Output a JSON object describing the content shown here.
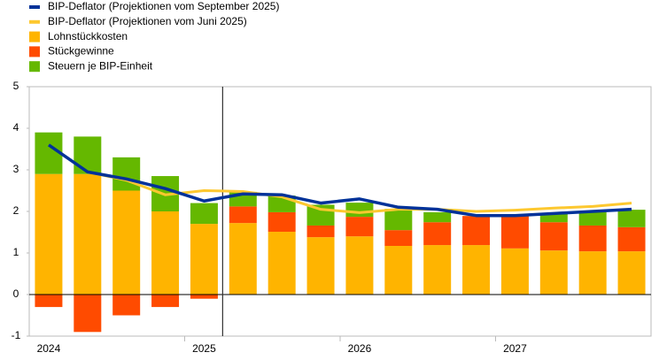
{
  "chart_data": {
    "type": "bar",
    "categories": [
      "2024",
      null,
      null,
      null,
      "2025",
      null,
      null,
      null,
      "2026",
      null,
      null,
      null,
      "2027",
      null,
      null,
      null
    ],
    "series": [
      {
        "name": "BIP-Deflator (Projektionen vom September 2025)",
        "type": "line",
        "color": "#003299",
        "values": [
          3.6,
          2.95,
          2.78,
          2.55,
          2.25,
          2.42,
          2.4,
          2.2,
          2.3,
          2.1,
          2.05,
          1.9,
          1.9,
          1.95,
          2.0,
          2.05
        ]
      },
      {
        "name": "BIP-Deflator (Projektionen vom Juni 2025)",
        "type": "line",
        "color": "#fdc82f",
        "values": [
          3.6,
          2.95,
          2.75,
          2.4,
          2.5,
          2.48,
          2.35,
          2.05,
          1.97,
          2.05,
          2.05,
          2.0,
          2.03,
          2.08,
          2.12,
          2.2
        ]
      },
      {
        "name": "Lohnstückkosten",
        "type": "bar",
        "color": "#ffb400",
        "values": [
          2.9,
          2.9,
          2.5,
          2.0,
          1.7,
          1.72,
          1.51,
          1.38,
          1.4,
          1.17,
          1.19,
          1.19,
          1.11,
          1.06,
          1.04,
          1.04
        ]
      },
      {
        "name": "Stückgewinne",
        "type": "bar",
        "color": "#ff4b00",
        "values": [
          -0.3,
          -0.9,
          -0.5,
          -0.3,
          -0.1,
          0.4,
          0.47,
          0.28,
          0.47,
          0.38,
          0.55,
          0.7,
          0.78,
          0.68,
          0.62,
          0.58
        ]
      },
      {
        "name": "Steuern je BIP-Einheit",
        "type": "bar",
        "color": "#65b800",
        "values": [
          1.0,
          0.9,
          0.8,
          0.85,
          0.5,
          0.35,
          0.4,
          0.5,
          0.34,
          0.51,
          0.24,
          0.0,
          0.0,
          0.22,
          0.32,
          0.42
        ]
      }
    ],
    "ylim": [
      -1,
      5
    ],
    "yticks": [
      5,
      4,
      3,
      2,
      1,
      0,
      -1
    ],
    "grid": false,
    "legend": "top-left"
  }
}
